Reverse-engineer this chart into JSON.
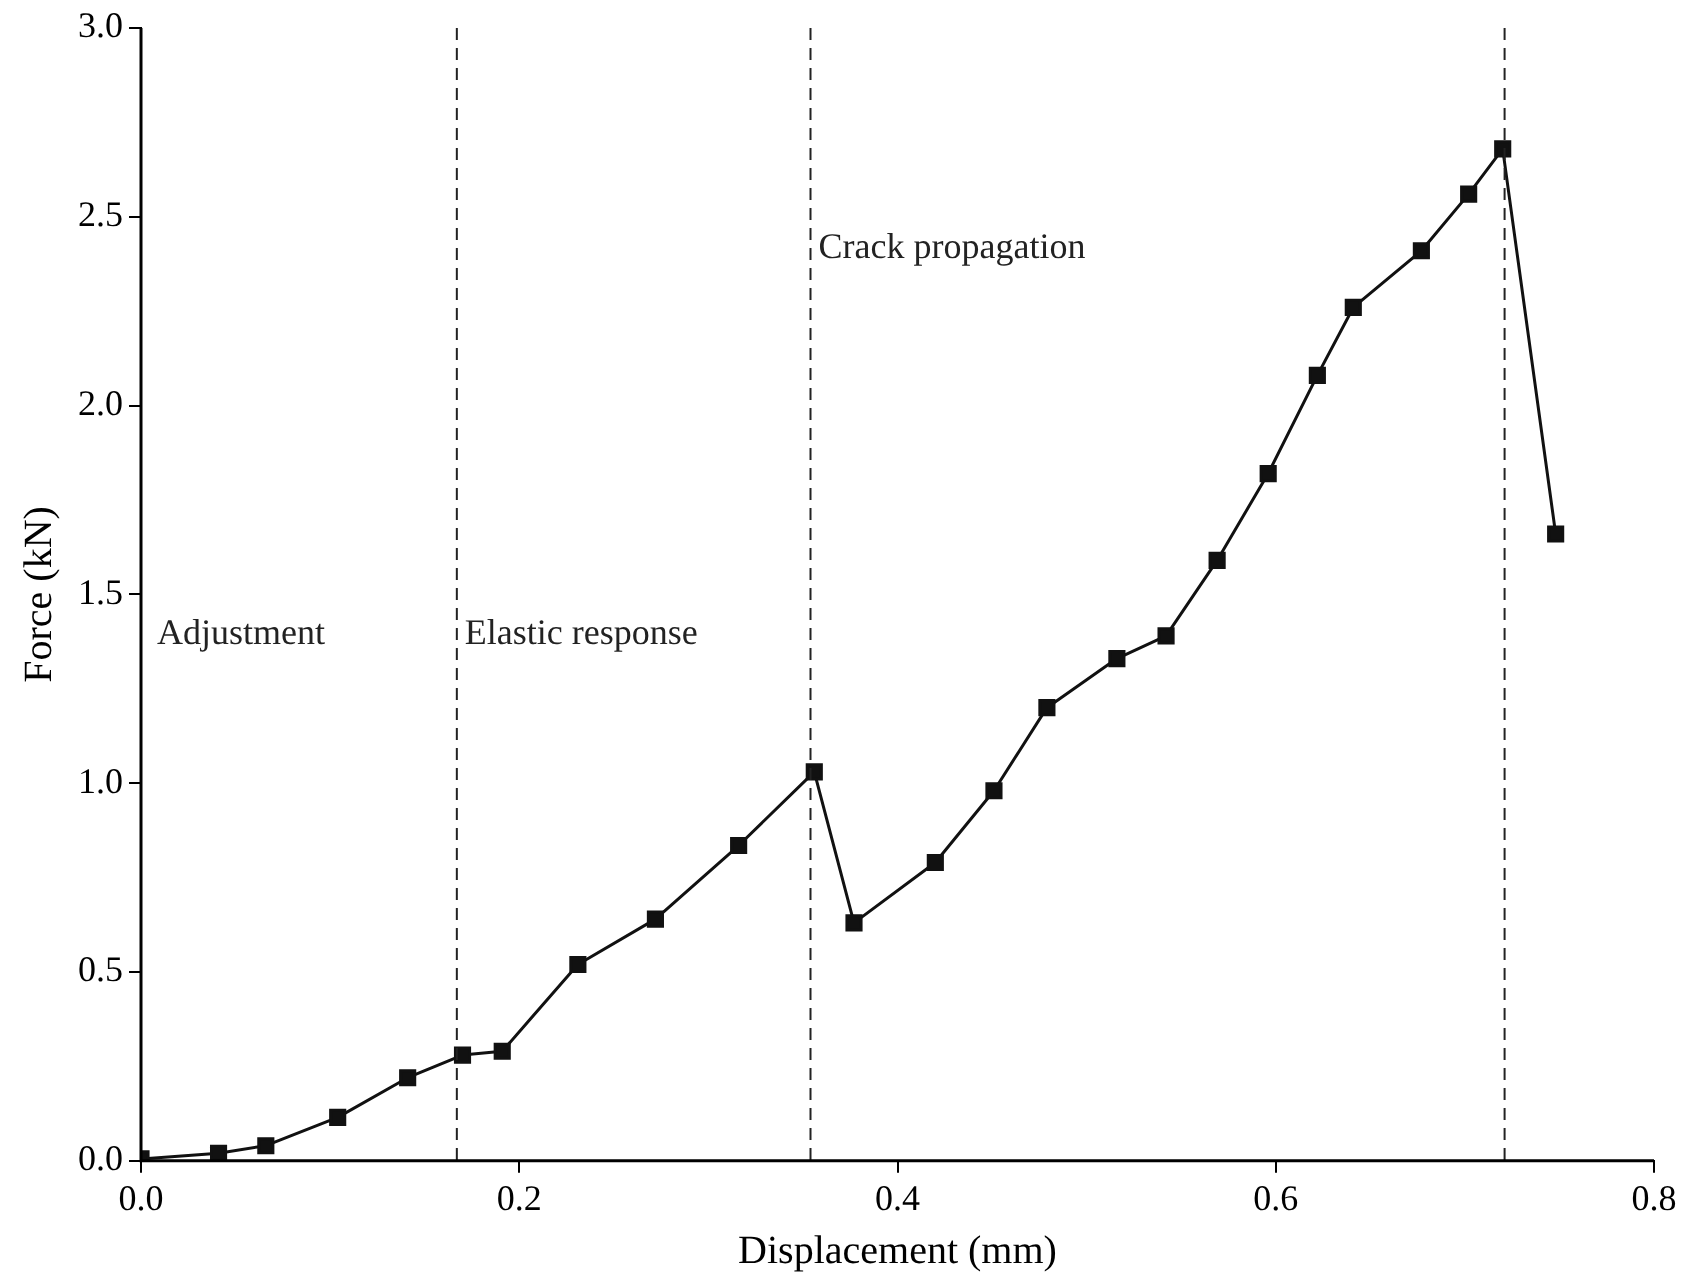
{
  "chart_data": {
    "type": "line",
    "xlabel": "Displacement (mm)",
    "ylabel": "Force (kN)",
    "x": [
      0.0,
      0.041,
      0.066,
      0.104,
      0.141,
      0.17,
      0.191,
      0.231,
      0.272,
      0.316,
      0.356,
      0.377,
      0.42,
      0.451,
      0.479,
      0.516,
      0.542,
      0.569,
      0.596,
      0.622,
      0.641,
      0.677,
      0.702,
      0.72,
      0.748
    ],
    "series": [
      {
        "color": "#111111",
        "values": [
          0.005,
          0.02,
          0.04,
          0.115,
          0.22,
          0.28,
          0.29,
          0.52,
          0.64,
          0.835,
          1.03,
          0.63,
          0.79,
          0.98,
          1.2,
          1.33,
          1.39,
          1.59,
          1.82,
          2.08,
          2.26,
          2.41,
          2.56,
          2.68,
          1.66
        ]
      }
    ],
    "xlim": [
      0,
      0.8
    ],
    "ylim": [
      0,
      3
    ],
    "xticks": [
      {
        "value": 0,
        "label": "0.0"
      },
      {
        "value": 0.2,
        "label": "0.2"
      },
      {
        "value": 0.4,
        "label": "0.4"
      },
      {
        "value": 0.6,
        "label": "0.6"
      },
      {
        "value": 0.8,
        "label": "0.8"
      }
    ],
    "yticks": [
      {
        "value": 0,
        "label": "0.0"
      },
      {
        "value": 0.5,
        "label": "0.5"
      },
      {
        "value": 1,
        "label": "1.0"
      },
      {
        "value": 1.5,
        "label": "1.5"
      },
      {
        "value": 2,
        "label": "2.0"
      },
      {
        "value": 2.5,
        "label": "2.5"
      },
      {
        "value": 3,
        "label": "3.0"
      }
    ],
    "ref_lines": [
      {
        "axis": "x",
        "value": 0.167,
        "line_style": "dashed"
      },
      {
        "axis": "x",
        "value": 0.354,
        "line_style": "dashed"
      },
      {
        "axis": "x",
        "value": 0.721,
        "line_style": "dashed"
      }
    ],
    "annotations": [
      "Adjustment",
      "Elastic response",
      "Crack propagation"
    ],
    "marker": "square",
    "line_style": "solid",
    "grid": false,
    "legend": false
  }
}
